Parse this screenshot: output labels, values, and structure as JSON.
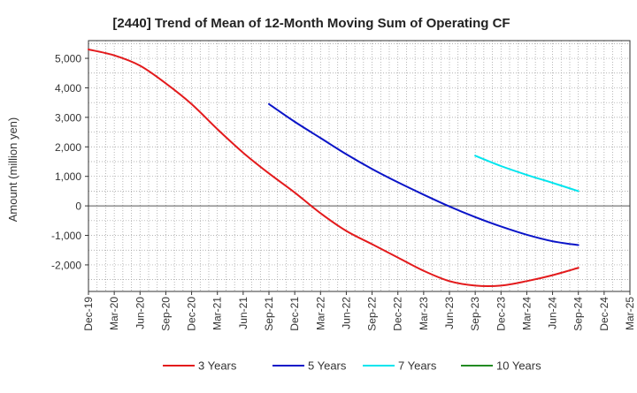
{
  "chart_data": {
    "type": "line",
    "title": "[2440]  Trend of Mean of 12-Month Moving Sum of Operating CF",
    "xlabel": "",
    "ylabel": "Amount (million yen)",
    "ylim": [
      -2900,
      5600
    ],
    "yticks": [
      5000,
      4000,
      3000,
      2000,
      1000,
      0,
      -1000,
      -2000
    ],
    "ytick_labels": [
      "5,000",
      "4,000",
      "3,000",
      "2,000",
      "1,000",
      "0",
      "-1,000",
      "-2,000"
    ],
    "x_start": "Dec-19",
    "x_end_index": 63,
    "xticks": [
      0,
      3,
      6,
      9,
      12,
      15,
      18,
      21,
      24,
      27,
      30,
      33,
      36,
      39,
      42,
      45,
      48,
      51,
      54,
      57,
      60,
      63
    ],
    "xtick_labels": [
      "Dec-19",
      "Mar-20",
      "Jun-20",
      "Sep-20",
      "Dec-20",
      "Mar-21",
      "Jun-21",
      "Sep-21",
      "Dec-21",
      "Mar-22",
      "Jun-22",
      "Sep-22",
      "Dec-22",
      "Mar-23",
      "Jun-23",
      "Sep-23",
      "Dec-23",
      "Mar-24",
      "Jun-24",
      "Sep-24",
      "Dec-24",
      "Mar-25"
    ],
    "grid": true,
    "legend_position": "bottom",
    "series": [
      {
        "name": "3 Years",
        "color": "#e31a1c",
        "x": [
          0,
          3,
          6,
          9,
          12,
          15,
          18,
          21,
          24,
          27,
          30,
          33,
          36,
          39,
          42,
          45,
          48,
          51,
          54,
          57
        ],
        "values": [
          5300,
          5100,
          4750,
          4150,
          3450,
          2600,
          1800,
          1100,
          450,
          -250,
          -850,
          -1300,
          -1750,
          -2200,
          -2550,
          -2700,
          -2700,
          -2550,
          -2350,
          -2100
        ]
      },
      {
        "name": "5 Years",
        "color": "#0a14c8",
        "x": [
          21,
          24,
          27,
          30,
          33,
          36,
          39,
          42,
          45,
          48,
          51,
          54,
          57
        ],
        "values": [
          3450,
          2850,
          2300,
          1750,
          1250,
          800,
          380,
          -20,
          -380,
          -700,
          -980,
          -1200,
          -1330
        ]
      },
      {
        "name": "7 Years",
        "color": "#00e5ee",
        "x": [
          45,
          48,
          51,
          54,
          57
        ],
        "values": [
          1700,
          1350,
          1050,
          780,
          500
        ]
      },
      {
        "name": "10 Years",
        "color": "#228b22",
        "x": [],
        "values": []
      }
    ]
  }
}
